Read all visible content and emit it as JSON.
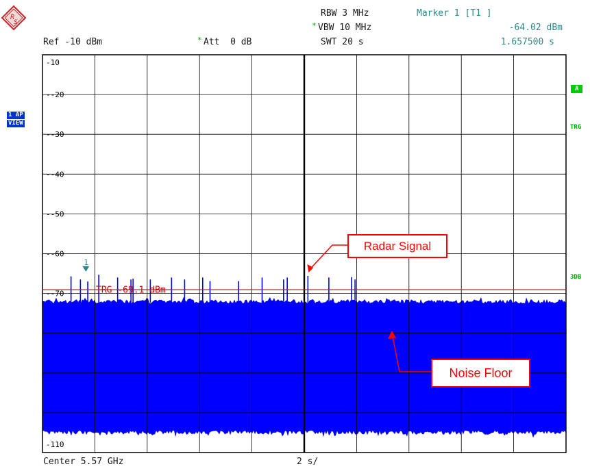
{
  "header": {
    "ref_level": "Ref -10 dBm",
    "att_star": "*",
    "att": "Att  0 dB",
    "rbw": "RBW 3 MHz",
    "vbw_star": "*",
    "vbw": "VBW 10 MHz",
    "swt": "SWT 20 s",
    "marker_title": "Marker 1 [T1 ]",
    "marker_level": "-64.02 dBm",
    "marker_time": "1.657500 s"
  },
  "left_tags": {
    "trace_line1": "1 AP",
    "trace_line2": "VIEW"
  },
  "right_tags": {
    "a": "A",
    "trg": "TRG",
    "db": "3DB"
  },
  "footer": {
    "center": "Center 5.57 GHz",
    "span": "2 s/"
  },
  "colors": {
    "trace": "#0000ff",
    "trigger_line": "#cc0000",
    "annotation": "#ff0000",
    "marker": "#2a8a8a",
    "grid": "#000000"
  },
  "chart_data": {
    "type": "line",
    "y_tick_labels": [
      "-10",
      "-20",
      "-30",
      "-40",
      "-50",
      "-60",
      "-70",
      "-110"
    ],
    "ylim": [
      -110,
      -10
    ],
    "xlim": [
      0,
      20
    ],
    "x_unit": "s",
    "noise_floor_dbm": {
      "top": -72,
      "bottom": -105
    },
    "trigger": {
      "label": "TRG -69.1 dBm",
      "level_dbm": -69.1
    },
    "marker": {
      "label": "1",
      "x_s": 1.6575,
      "level_dbm": -64.02
    },
    "radar_pulses": [
      {
        "x_s": 1.09,
        "peak_dbm": -65.7
      },
      {
        "x_s": 1.45,
        "peak_dbm": -66.5
      },
      {
        "x_s": 1.73,
        "peak_dbm": -67.0
      },
      {
        "x_s": 2.15,
        "peak_dbm": -65.3
      },
      {
        "x_s": 2.87,
        "peak_dbm": -66.0
      },
      {
        "x_s": 3.38,
        "peak_dbm": -66.5
      },
      {
        "x_s": 3.46,
        "peak_dbm": -66.3
      },
      {
        "x_s": 4.12,
        "peak_dbm": -66.5
      },
      {
        "x_s": 4.93,
        "peak_dbm": -66.0
      },
      {
        "x_s": 5.43,
        "peak_dbm": -66.5
      },
      {
        "x_s": 6.12,
        "peak_dbm": -66.0
      },
      {
        "x_s": 6.4,
        "peak_dbm": -66.9
      },
      {
        "x_s": 7.49,
        "peak_dbm": -66.9
      },
      {
        "x_s": 8.39,
        "peak_dbm": -66.0
      },
      {
        "x_s": 9.21,
        "peak_dbm": -66.5
      },
      {
        "x_s": 9.35,
        "peak_dbm": -66.0
      },
      {
        "x_s": 10.14,
        "peak_dbm": -65.6
      },
      {
        "x_s": 10.94,
        "peak_dbm": -66.0
      },
      {
        "x_s": 11.81,
        "peak_dbm": -65.9
      },
      {
        "x_s": 11.94,
        "peak_dbm": -66.5
      }
    ],
    "annotations": [
      {
        "text": "Radar Signal"
      },
      {
        "text": "Noise Floor"
      }
    ]
  }
}
